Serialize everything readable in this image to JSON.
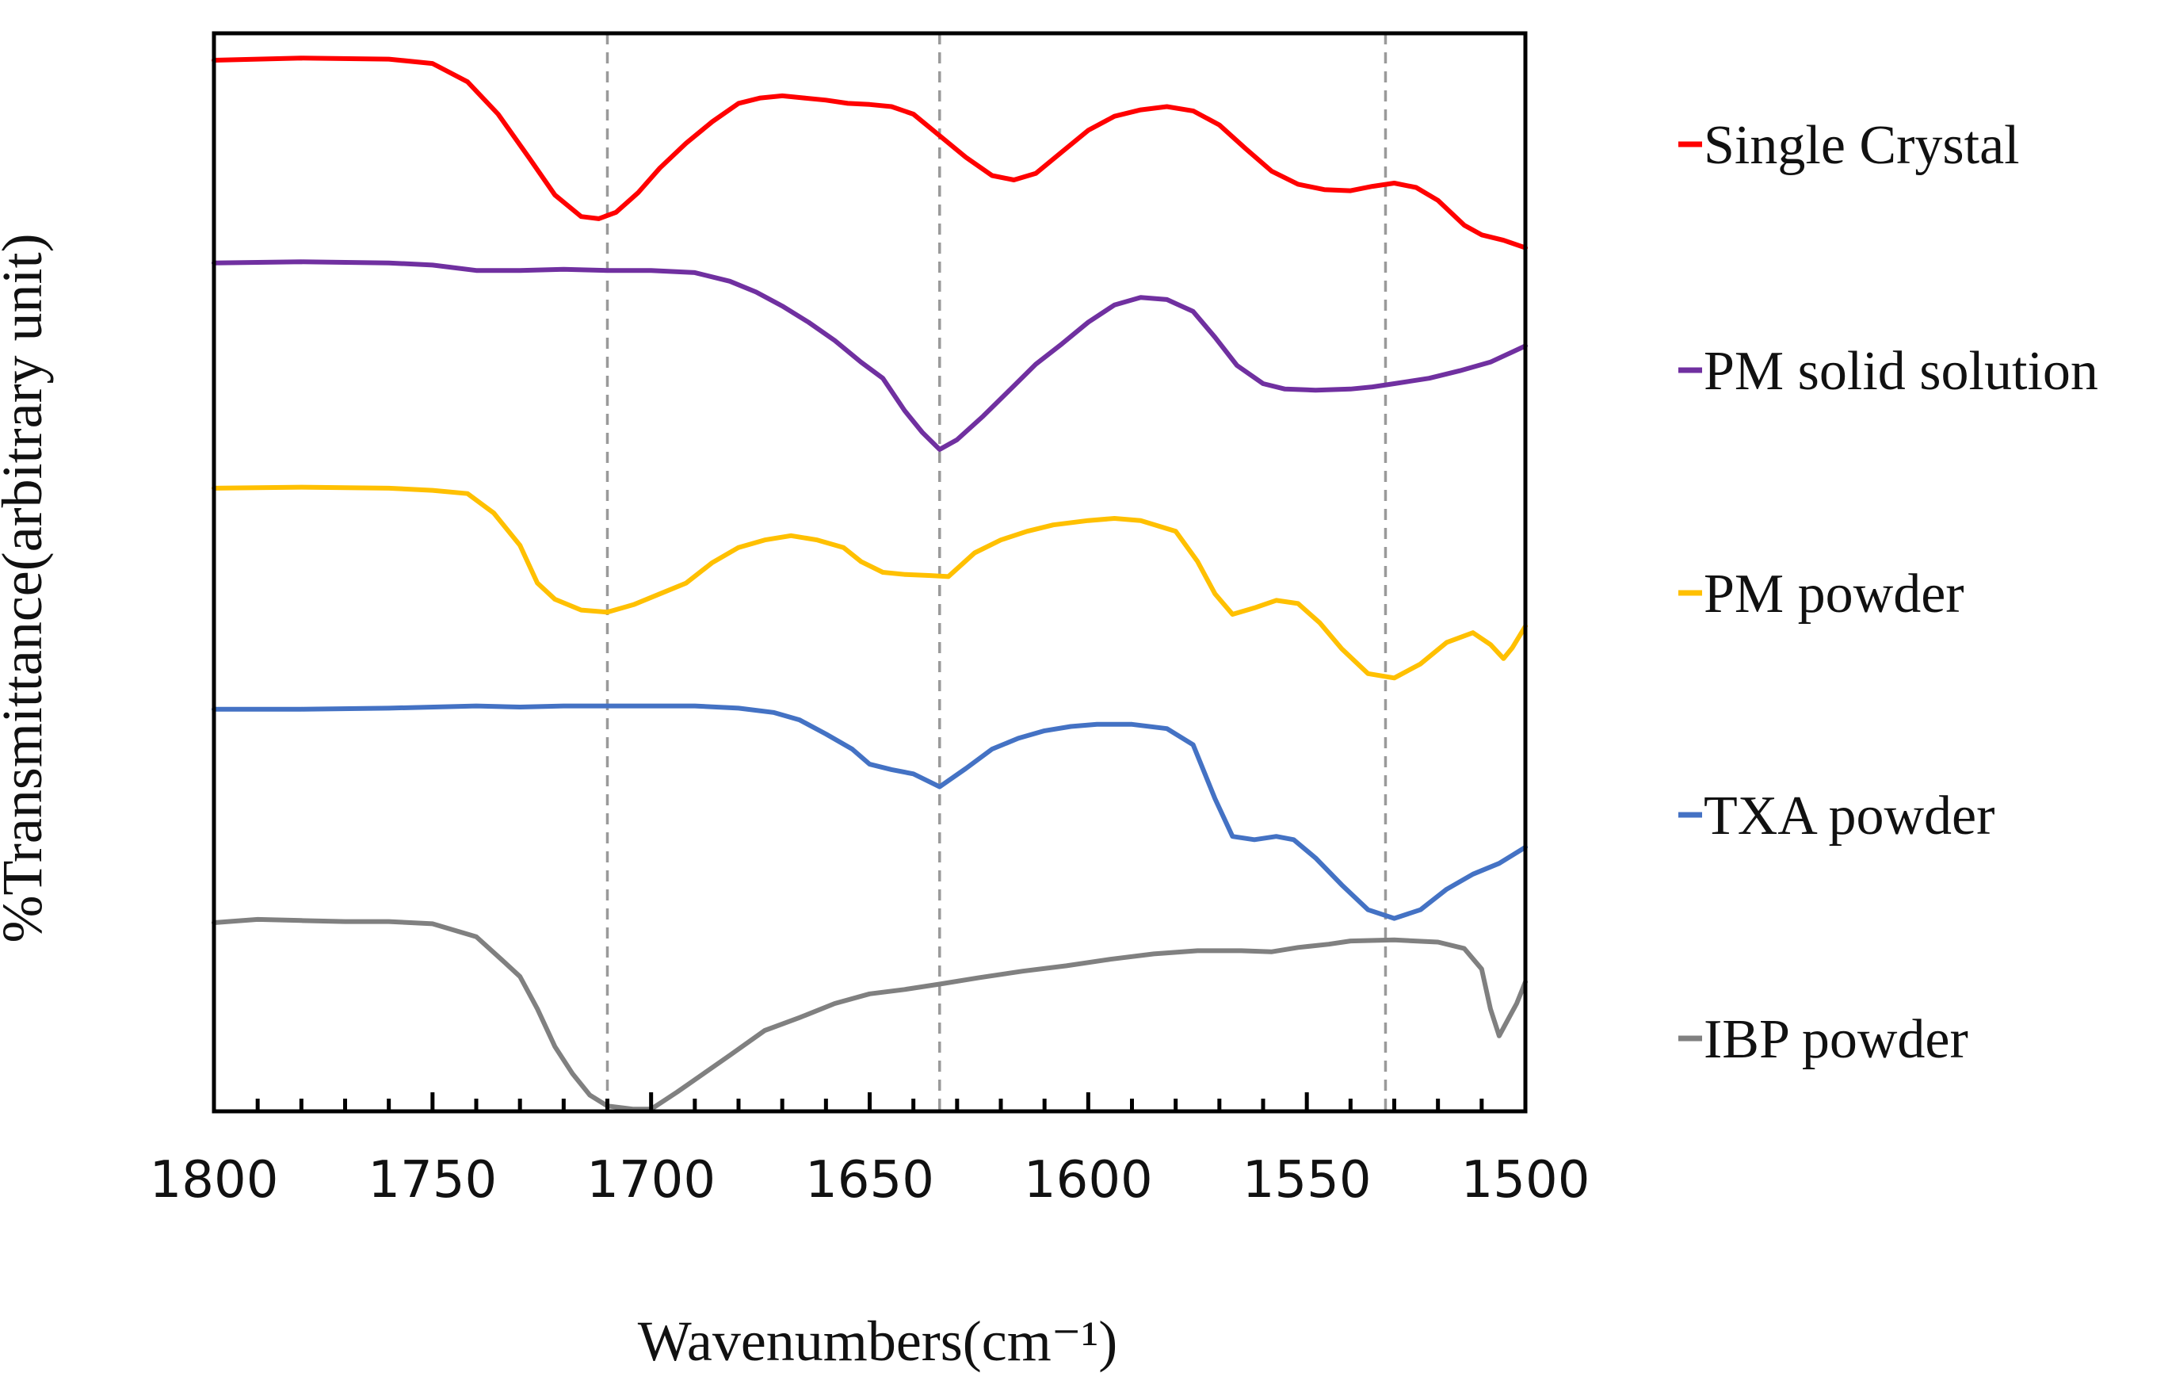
{
  "chart_data": {
    "type": "line",
    "title": "",
    "xlabel": "Wavenumbers(cm⁻¹)",
    "ylabel": "%Transmittance(arbitrary unit)",
    "xlim": [
      1800,
      1500
    ],
    "x_reversed": true,
    "ylim": [
      0,
      100
    ],
    "y_ticks_shown": false,
    "x_ticks": [
      "1800",
      "1750",
      "1700",
      "1650",
      "1600",
      "1550",
      "1500"
    ],
    "reference_lines_x": [
      1710,
      1634,
      1532
    ],
    "legend_position": "right",
    "series": [
      {
        "name": "Single Crystal",
        "color": "#ff0000",
        "points": [
          [
            1800,
            97.5
          ],
          [
            1780,
            97.7
          ],
          [
            1760,
            97.6
          ],
          [
            1750,
            97.2
          ],
          [
            1742,
            95.5
          ],
          [
            1735,
            92.5
          ],
          [
            1728,
            88.5
          ],
          [
            1722,
            85.0
          ],
          [
            1716,
            83.0
          ],
          [
            1712,
            82.8
          ],
          [
            1708,
            83.4
          ],
          [
            1703,
            85.2
          ],
          [
            1698,
            87.5
          ],
          [
            1692,
            89.8
          ],
          [
            1686,
            91.8
          ],
          [
            1680,
            93.5
          ],
          [
            1675,
            94.0
          ],
          [
            1670,
            94.2
          ],
          [
            1665,
            94.0
          ],
          [
            1660,
            93.8
          ],
          [
            1655,
            93.5
          ],
          [
            1650,
            93.4
          ],
          [
            1645,
            93.2
          ],
          [
            1640,
            92.5
          ],
          [
            1634,
            90.5
          ],
          [
            1628,
            88.5
          ],
          [
            1622,
            86.8
          ],
          [
            1617,
            86.4
          ],
          [
            1612,
            87.0
          ],
          [
            1606,
            89.0
          ],
          [
            1600,
            91.0
          ],
          [
            1594,
            92.3
          ],
          [
            1588,
            92.9
          ],
          [
            1582,
            93.2
          ],
          [
            1576,
            92.8
          ],
          [
            1570,
            91.5
          ],
          [
            1564,
            89.3
          ],
          [
            1558,
            87.2
          ],
          [
            1552,
            86.0
          ],
          [
            1546,
            85.5
          ],
          [
            1540,
            85.4
          ],
          [
            1535,
            85.8
          ],
          [
            1530,
            86.1
          ],
          [
            1525,
            85.7
          ],
          [
            1520,
            84.5
          ],
          [
            1514,
            82.2
          ],
          [
            1510,
            81.3
          ],
          [
            1505,
            80.8
          ],
          [
            1500,
            80.1
          ]
        ]
      },
      {
        "name": "PM solid solution",
        "color": "#7030a0",
        "points": [
          [
            1800,
            78.7
          ],
          [
            1780,
            78.8
          ],
          [
            1760,
            78.7
          ],
          [
            1750,
            78.5
          ],
          [
            1740,
            78.0
          ],
          [
            1730,
            78.0
          ],
          [
            1720,
            78.1
          ],
          [
            1710,
            78.0
          ],
          [
            1700,
            78.0
          ],
          [
            1690,
            77.8
          ],
          [
            1682,
            77.0
          ],
          [
            1676,
            76.0
          ],
          [
            1670,
            74.7
          ],
          [
            1664,
            73.2
          ],
          [
            1658,
            71.5
          ],
          [
            1652,
            69.5
          ],
          [
            1647,
            68.0
          ],
          [
            1642,
            65.0
          ],
          [
            1638,
            63.0
          ],
          [
            1634,
            61.4
          ],
          [
            1630,
            62.3
          ],
          [
            1624,
            64.5
          ],
          [
            1618,
            66.9
          ],
          [
            1612,
            69.3
          ],
          [
            1606,
            71.2
          ],
          [
            1600,
            73.2
          ],
          [
            1594,
            74.8
          ],
          [
            1588,
            75.5
          ],
          [
            1582,
            75.3
          ],
          [
            1576,
            74.2
          ],
          [
            1571,
            71.8
          ],
          [
            1566,
            69.2
          ],
          [
            1560,
            67.5
          ],
          [
            1555,
            67.0
          ],
          [
            1548,
            66.9
          ],
          [
            1540,
            67.0
          ],
          [
            1535,
            67.2
          ],
          [
            1530,
            67.5
          ],
          [
            1522,
            68.0
          ],
          [
            1515,
            68.7
          ],
          [
            1508,
            69.5
          ],
          [
            1500,
            71.0
          ]
        ]
      },
      {
        "name": "PM powder",
        "color": "#ffc000",
        "points": [
          [
            1800,
            57.8
          ],
          [
            1780,
            57.9
          ],
          [
            1760,
            57.8
          ],
          [
            1750,
            57.6
          ],
          [
            1742,
            57.3
          ],
          [
            1736,
            55.5
          ],
          [
            1730,
            52.5
          ],
          [
            1726,
            49.0
          ],
          [
            1722,
            47.5
          ],
          [
            1716,
            46.5
          ],
          [
            1710,
            46.3
          ],
          [
            1704,
            47.0
          ],
          [
            1698,
            48.0
          ],
          [
            1692,
            49.0
          ],
          [
            1686,
            50.9
          ],
          [
            1680,
            52.3
          ],
          [
            1674,
            53.0
          ],
          [
            1668,
            53.4
          ],
          [
            1662,
            53.0
          ],
          [
            1656,
            52.3
          ],
          [
            1652,
            51.0
          ],
          [
            1647,
            50.0
          ],
          [
            1642,
            49.8
          ],
          [
            1636,
            49.7
          ],
          [
            1632,
            49.6
          ],
          [
            1626,
            51.8
          ],
          [
            1620,
            53.0
          ],
          [
            1614,
            53.8
          ],
          [
            1608,
            54.4
          ],
          [
            1600,
            54.8
          ],
          [
            1594,
            55.0
          ],
          [
            1588,
            54.8
          ],
          [
            1580,
            53.8
          ],
          [
            1575,
            51.0
          ],
          [
            1571,
            48.0
          ],
          [
            1567,
            46.1
          ],
          [
            1562,
            46.7
          ],
          [
            1557,
            47.4
          ],
          [
            1552,
            47.1
          ],
          [
            1547,
            45.3
          ],
          [
            1542,
            42.9
          ],
          [
            1536,
            40.6
          ],
          [
            1530,
            40.2
          ],
          [
            1524,
            41.5
          ],
          [
            1518,
            43.5
          ],
          [
            1512,
            44.4
          ],
          [
            1508,
            43.3
          ],
          [
            1505,
            42.0
          ],
          [
            1503,
            43.0
          ],
          [
            1500,
            45.0
          ]
        ]
      },
      {
        "name": "TXA powder",
        "color": "#4472c4",
        "points": [
          [
            1800,
            37.3
          ],
          [
            1780,
            37.3
          ],
          [
            1760,
            37.4
          ],
          [
            1740,
            37.6
          ],
          [
            1730,
            37.5
          ],
          [
            1720,
            37.6
          ],
          [
            1710,
            37.6
          ],
          [
            1700,
            37.6
          ],
          [
            1690,
            37.6
          ],
          [
            1680,
            37.4
          ],
          [
            1672,
            37.0
          ],
          [
            1666,
            36.3
          ],
          [
            1660,
            35.0
          ],
          [
            1654,
            33.6
          ],
          [
            1650,
            32.2
          ],
          [
            1645,
            31.7
          ],
          [
            1640,
            31.3
          ],
          [
            1634,
            30.1
          ],
          [
            1628,
            31.8
          ],
          [
            1622,
            33.6
          ],
          [
            1616,
            34.6
          ],
          [
            1610,
            35.3
          ],
          [
            1604,
            35.7
          ],
          [
            1598,
            35.9
          ],
          [
            1590,
            35.9
          ],
          [
            1582,
            35.5
          ],
          [
            1576,
            34.0
          ],
          [
            1571,
            29.0
          ],
          [
            1567,
            25.5
          ],
          [
            1562,
            25.2
          ],
          [
            1557,
            25.5
          ],
          [
            1553,
            25.2
          ],
          [
            1548,
            23.5
          ],
          [
            1542,
            21.0
          ],
          [
            1536,
            18.7
          ],
          [
            1530,
            17.9
          ],
          [
            1524,
            18.7
          ],
          [
            1518,
            20.6
          ],
          [
            1512,
            22.0
          ],
          [
            1506,
            23.0
          ],
          [
            1500,
            24.5
          ]
        ]
      },
      {
        "name": "IBP powder",
        "color": "#808080",
        "points": [
          [
            1800,
            17.5
          ],
          [
            1790,
            17.8
          ],
          [
            1780,
            17.7
          ],
          [
            1770,
            17.6
          ],
          [
            1760,
            17.6
          ],
          [
            1750,
            17.4
          ],
          [
            1740,
            16.2
          ],
          [
            1734,
            14.0
          ],
          [
            1730,
            12.5
          ],
          [
            1726,
            9.5
          ],
          [
            1722,
            6.0
          ],
          [
            1718,
            3.5
          ],
          [
            1714,
            1.5
          ],
          [
            1710,
            0.5
          ],
          [
            1704,
            0.2
          ],
          [
            1700,
            0.2
          ],
          [
            1694,
            1.8
          ],
          [
            1688,
            3.5
          ],
          [
            1682,
            5.2
          ],
          [
            1674,
            7.5
          ],
          [
            1666,
            8.7
          ],
          [
            1658,
            10.0
          ],
          [
            1650,
            10.9
          ],
          [
            1642,
            11.3
          ],
          [
            1634,
            11.8
          ],
          [
            1625,
            12.4
          ],
          [
            1615,
            13.0
          ],
          [
            1605,
            13.5
          ],
          [
            1595,
            14.1
          ],
          [
            1585,
            14.6
          ],
          [
            1575,
            14.9
          ],
          [
            1565,
            14.9
          ],
          [
            1558,
            14.8
          ],
          [
            1552,
            15.2
          ],
          [
            1545,
            15.5
          ],
          [
            1540,
            15.8
          ],
          [
            1530,
            15.9
          ],
          [
            1520,
            15.7
          ],
          [
            1514,
            15.1
          ],
          [
            1510,
            13.2
          ],
          [
            1508,
            9.5
          ],
          [
            1506,
            7.0
          ],
          [
            1504,
            8.5
          ],
          [
            1502,
            10.0
          ],
          [
            1500,
            12.0
          ]
        ]
      }
    ]
  }
}
